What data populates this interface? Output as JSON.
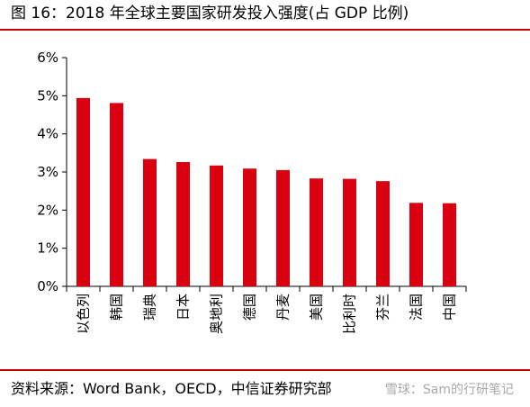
{
  "header": {
    "title": "图 16：2018 年全球主要国家研发投入强度(占 GDP 比例)"
  },
  "footer": {
    "source": "资料来源：Word Bank，OECD，中信证券研究部",
    "watermark": "雪球：Sam的行研笔记"
  },
  "colors": {
    "bar": "#d9000f",
    "accent_rule": "#c00000",
    "axis": "#000000"
  },
  "chart_data": {
    "type": "bar",
    "categories": [
      "以色列",
      "韩国",
      "瑞典",
      "日本",
      "奥地利",
      "德国",
      "丹麦",
      "美国",
      "比利时",
      "芬兰",
      "法国",
      "中国"
    ],
    "values": [
      4.94,
      4.81,
      3.34,
      3.26,
      3.17,
      3.09,
      3.05,
      2.83,
      2.82,
      2.76,
      2.19,
      2.18
    ],
    "title": "",
    "xlabel": "",
    "ylabel": "",
    "ylim": [
      0,
      6
    ],
    "yticks": [
      0,
      1,
      2,
      3,
      4,
      5,
      6
    ],
    "ytick_labels": [
      "0%",
      "1%",
      "2%",
      "3%",
      "4%",
      "5%",
      "6%"
    ],
    "grid": false,
    "legend": "none"
  }
}
